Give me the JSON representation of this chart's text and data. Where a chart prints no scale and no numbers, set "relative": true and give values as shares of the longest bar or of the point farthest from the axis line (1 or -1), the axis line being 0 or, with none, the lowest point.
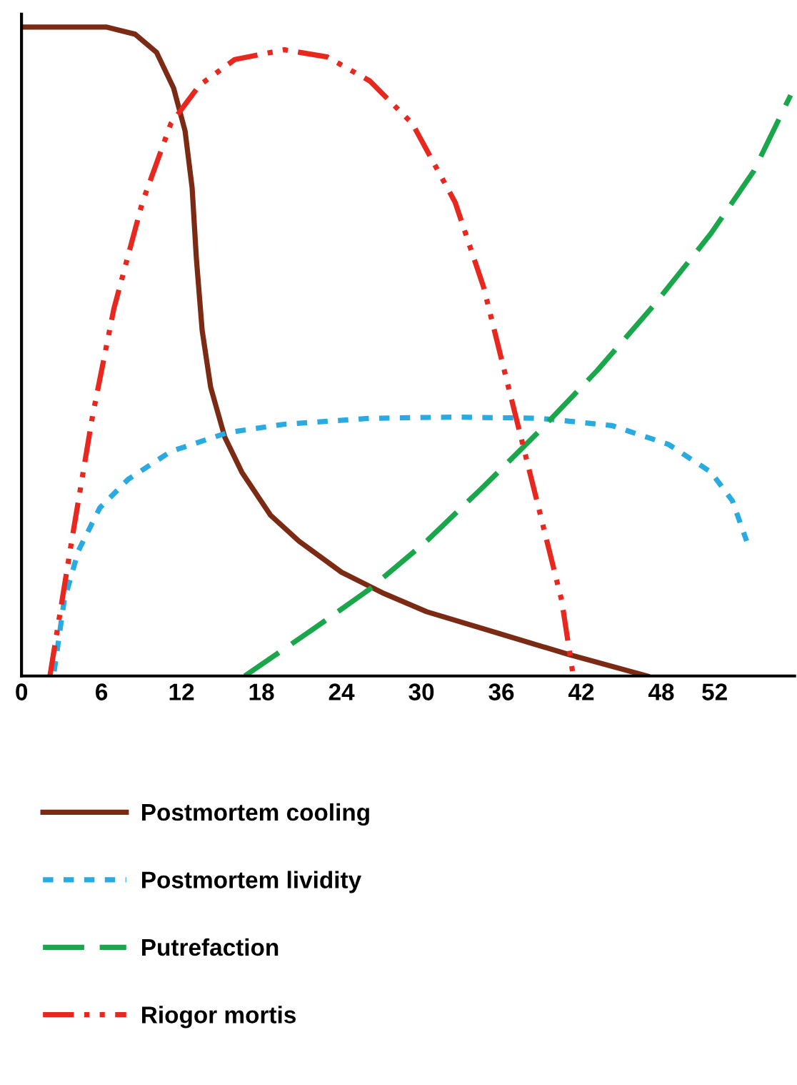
{
  "chart_data": {
    "type": "line",
    "relative": true,
    "xlim": [
      0,
      58
    ],
    "xticks": [
      0,
      6,
      12,
      18,
      24,
      30,
      36,
      42,
      48,
      52
    ],
    "tick_labels": "x",
    "grid": false,
    "legend": "bottom",
    "marker": "none",
    "series": [
      {
        "name": "Postmortem cooling",
        "color": "#7b2a14",
        "line_style": "solid",
        "x": [
          0,
          6.4,
          8.53,
          10.13,
          11.41,
          12.27,
          12.8,
          13.12,
          13.55,
          14.19,
          15.25,
          16.53,
          18.67,
          20.8,
          24.0,
          27.2,
          30.4,
          35.73,
          41.07,
          46.93
        ],
        "values": [
          1.0,
          1.0,
          0.989,
          0.961,
          0.906,
          0.84,
          0.752,
          0.643,
          0.533,
          0.445,
          0.368,
          0.314,
          0.248,
          0.208,
          0.16,
          0.127,
          0.099,
          0.066,
          0.033,
          0
        ]
      },
      {
        "name": "Postmortem lividity",
        "color": "#29abe2",
        "line_style": "dotted",
        "x": [
          2.45,
          3.2,
          4.27,
          5.87,
          8.0,
          11.2,
          15.47,
          19.73,
          26.13,
          32.53,
          38.93,
          44.27,
          48.53,
          51.73,
          53.33,
          54.4
        ],
        "values": [
          0.007,
          0.116,
          0.193,
          0.259,
          0.303,
          0.346,
          0.375,
          0.388,
          0.397,
          0.399,
          0.397,
          0.386,
          0.357,
          0.314,
          0.27,
          0.208
        ]
      },
      {
        "name": "Putrefaction",
        "color": "#1aa64a",
        "line_style": "dashed",
        "x": [
          16.75,
          21.87,
          26.13,
          30.4,
          34.67,
          38.93,
          43.2,
          47.47,
          51.73,
          54.93,
          57.7
        ],
        "values": [
          0,
          0.072,
          0.134,
          0.208,
          0.292,
          0.379,
          0.471,
          0.572,
          0.682,
          0.778,
          0.895
        ]
      },
      {
        "name": "Riogor mortis",
        "color": "#e8281e",
        "line_style": "dashdotdot",
        "x": [
          2.13,
          3.73,
          5.33,
          6.93,
          9.07,
          11.2,
          13.33,
          16.0,
          19.73,
          22.93,
          26.13,
          29.33,
          32.53,
          34.67,
          36.8,
          38.93,
          40.53,
          41.39
        ],
        "values": [
          0,
          0.204,
          0.401,
          0.566,
          0.73,
          0.851,
          0.91,
          0.95,
          0.965,
          0.954,
          0.917,
          0.851,
          0.73,
          0.599,
          0.423,
          0.248,
          0.116,
          0
        ]
      }
    ]
  }
}
